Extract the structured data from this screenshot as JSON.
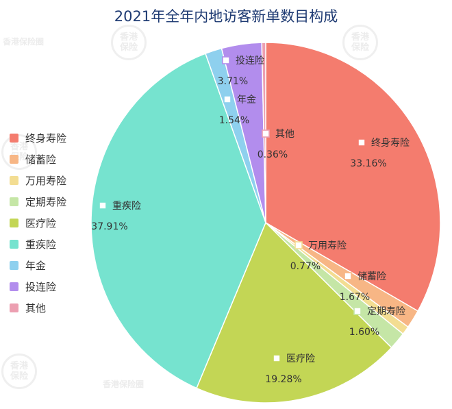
{
  "chart_data": {
    "type": "pie",
    "title": "2021年全年内地访客新单数目构成",
    "slices": [
      {
        "name": "终身寿险",
        "value": 33.16,
        "label": "33.16%",
        "color": "#f47c6e"
      },
      {
        "name": "储蓄险",
        "value": 1.67,
        "label": "1.67%",
        "color": "#f7b685"
      },
      {
        "name": "万用寿险",
        "value": 0.77,
        "label": "0.77%",
        "color": "#f3dd92"
      },
      {
        "name": "定期寿险",
        "value": 1.6,
        "label": "1.60%",
        "color": "#c5e6a6"
      },
      {
        "name": "医疗险",
        "value": 19.28,
        "label": "19.28%",
        "color": "#c3d655"
      },
      {
        "name": "重疾险",
        "value": 37.91,
        "label": "37.91%",
        "color": "#76e3cf"
      },
      {
        "name": "年金",
        "value": 1.54,
        "label": "1.54%",
        "color": "#8ed0ee"
      },
      {
        "name": "投连险",
        "value": 3.71,
        "label": "3.71%",
        "color": "#b28ded"
      },
      {
        "name": "其他",
        "value": 0.36,
        "label": "0.36%",
        "color": "#ec9fb1"
      }
    ],
    "legend_position": "left"
  },
  "watermark": {
    "text": "香港保险圈",
    "seal_text": "香港保险"
  }
}
